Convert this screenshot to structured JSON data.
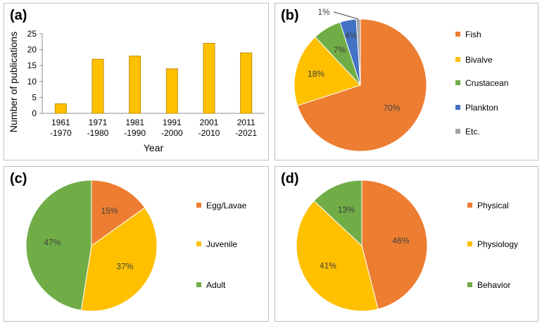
{
  "panels": {
    "a": {
      "label": "(a)"
    },
    "b": {
      "label": "(b)"
    },
    "c": {
      "label": "(c)"
    },
    "d": {
      "label": "(d)"
    }
  },
  "chart_data": [
    {
      "id": "a",
      "type": "bar",
      "title": "",
      "xlabel": "Year",
      "ylabel": "Number of publications",
      "categories": [
        [
          "1961",
          "-1970"
        ],
        [
          "1971",
          "-1980"
        ],
        [
          "1981",
          "-1990"
        ],
        [
          "1991",
          "-2000"
        ],
        [
          "2001",
          "-2010"
        ],
        [
          "2011",
          "-2021"
        ]
      ],
      "values": [
        3,
        17,
        18,
        14,
        22,
        19
      ],
      "ylim": [
        0,
        25
      ],
      "yticks": [
        0,
        5,
        10,
        15,
        20,
        25
      ],
      "grid": false,
      "color": "#FFC000"
    },
    {
      "id": "b",
      "type": "pie",
      "labels": [
        "Fish",
        "Bivalve",
        "Crustacean",
        "Plankton",
        "Etc."
      ],
      "values": [
        70,
        18,
        7,
        4,
        1
      ],
      "value_labels": [
        "70%",
        "18%",
        "7%",
        "4%",
        "1%"
      ],
      "colors": [
        "#ED7D31",
        "#FFC000",
        "#70AD47",
        "#4472C4",
        "#A5A5A5"
      ],
      "legend": "right"
    },
    {
      "id": "c",
      "type": "pie",
      "labels": [
        "Egg/Lavae",
        "Juvenile",
        "Adult"
      ],
      "values": [
        15,
        37,
        47
      ],
      "value_labels": [
        "15%",
        "37%",
        "47%"
      ],
      "colors": [
        "#ED7D31",
        "#FFC000",
        "#70AD47"
      ],
      "legend": "right"
    },
    {
      "id": "d",
      "type": "pie",
      "labels": [
        "Physical",
        "Physiology",
        "Behavior"
      ],
      "values": [
        46,
        41,
        13
      ],
      "value_labels": [
        "46%",
        "41%",
        "13%"
      ],
      "colors": [
        "#ED7D31",
        "#FFC000",
        "#70AD47"
      ],
      "legend": "right"
    }
  ]
}
